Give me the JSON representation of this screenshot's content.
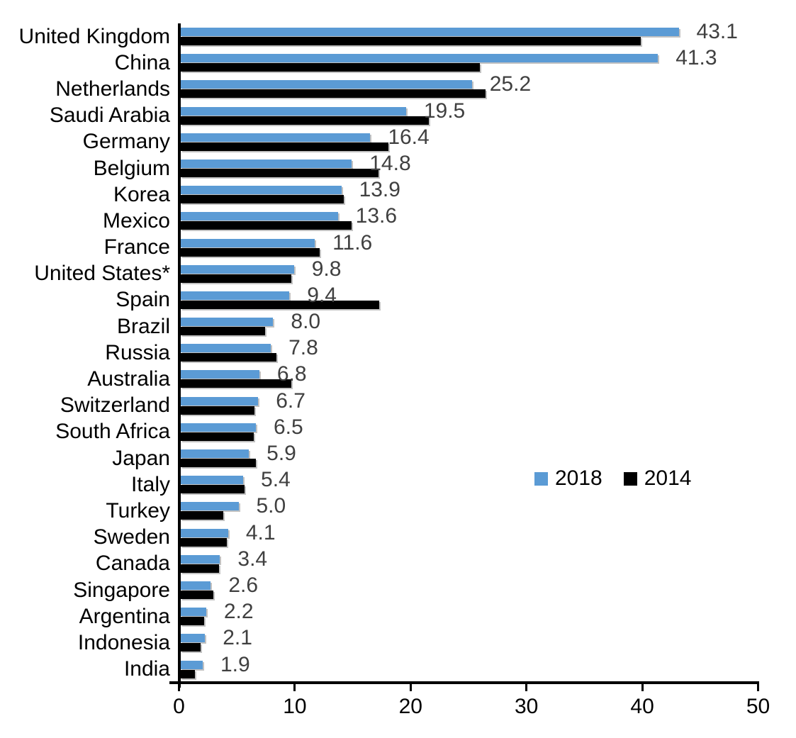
{
  "chart_data": {
    "type": "bar",
    "orientation": "horizontal",
    "title": "",
    "xlabel": "",
    "ylabel": "",
    "xlim": [
      0,
      50
    ],
    "grid": false,
    "categories": [
      "United Kingdom",
      "China",
      "Netherlands",
      "Saudi Arabia",
      "Germany",
      "Belgium",
      "Korea",
      "Mexico",
      "France",
      "United States*",
      "Spain",
      "Brazil",
      "Russia",
      "Australia",
      "Switzerland",
      "South Africa",
      "Japan",
      "Italy",
      "Turkey",
      "Sweden",
      "Canada",
      "Singapore",
      "Argentina",
      "Indonesia",
      "India"
    ],
    "series": [
      {
        "name": "2018",
        "color": "#5B9BD5",
        "values": [
          43.1,
          41.3,
          25.2,
          19.5,
          16.4,
          14.8,
          13.9,
          13.6,
          11.6,
          9.8,
          9.4,
          8.0,
          7.8,
          6.8,
          6.7,
          6.5,
          5.9,
          5.4,
          5.0,
          4.1,
          3.4,
          2.6,
          2.2,
          2.1,
          1.9
        ]
      },
      {
        "name": "2014",
        "color": "#000000",
        "values": [
          39.8,
          25.9,
          26.4,
          21.5,
          18.0,
          17.1,
          14.1,
          14.8,
          12.0,
          9.6,
          17.2,
          7.3,
          8.3,
          9.6,
          6.4,
          6.3,
          6.5,
          5.5,
          3.7,
          4.0,
          3.3,
          2.8,
          2.0,
          1.7,
          1.2
        ]
      }
    ],
    "data_labels": {
      "attached_to_series": "2018",
      "color": "#404040",
      "values": [
        "43.1",
        "41.3",
        "25.2",
        "19.5",
        "16.4",
        "14.8",
        "13.9",
        "13.6",
        "11.6",
        "9.8",
        "9.4",
        "8.0",
        "7.8",
        "6.8",
        "6.7",
        "6.5",
        "5.9",
        "5.4",
        "5.0",
        "4.1",
        "3.4",
        "2.6",
        "2.2",
        "2.1",
        "1.9"
      ]
    },
    "x_axis": {
      "tick_labels": [
        "0",
        "10",
        "20",
        "30",
        "40",
        "50"
      ]
    },
    "legend": {
      "position": "middle-right",
      "entries": [
        "2018",
        "2014"
      ]
    }
  }
}
